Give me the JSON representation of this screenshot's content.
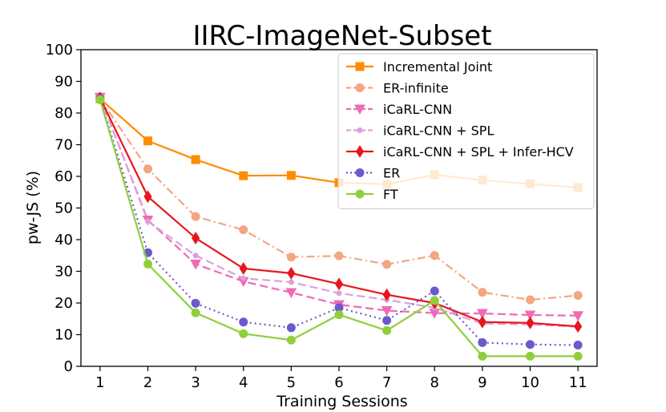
{
  "chart_data": {
    "type": "line",
    "title": "IIRC-ImageNet-Subset",
    "xlabel": "Training Sessions",
    "ylabel": "pw-JS (%)",
    "x": [
      1,
      2,
      3,
      4,
      5,
      6,
      7,
      8,
      9,
      10,
      11
    ],
    "xlim": [
      0.6,
      11.4
    ],
    "ylim": [
      0,
      100
    ],
    "yticks": [
      0,
      10,
      20,
      30,
      40,
      50,
      60,
      70,
      80,
      90,
      100
    ],
    "grid": false,
    "legend_position": "top-right",
    "series": [
      {
        "name": "Incremental Joint",
        "color": "#ff8c00",
        "dash": "solid",
        "marker": "square",
        "values": [
          84.5,
          71.2,
          65.3,
          60.2,
          60.3,
          58.0,
          57.5,
          60.5,
          58.8,
          57.6,
          56.5
        ]
      },
      {
        "name": "ER-infinite",
        "color": "#f4a582",
        "dash": "dashdot",
        "marker": "circle",
        "values": [
          84.6,
          62.3,
          47.3,
          43.1,
          34.5,
          34.9,
          32.2,
          35.0,
          23.4,
          21.0,
          22.4
        ]
      },
      {
        "name": "iCaRL-CNN",
        "color": "#f06ab4",
        "dash": "dashed",
        "marker": "triangle-down",
        "values": [
          85.0,
          46.2,
          32.3,
          26.8,
          23.3,
          19.5,
          17.6,
          16.8,
          16.7,
          16.2,
          16.0
        ]
      },
      {
        "name": "iCaRL-CNN + SPL",
        "color": "#dda0dd",
        "dash": "dashed",
        "marker": "small-dot",
        "values": [
          85.3,
          45.8,
          35.0,
          27.8,
          26.6,
          23.1,
          21.0,
          18.5,
          13.5,
          13.2,
          12.5
        ]
      },
      {
        "name": "iCaRL-CNN + SPL + Infer-HCV",
        "color": "#e8161c",
        "dash": "solid",
        "marker": "diamond",
        "values": [
          84.8,
          53.6,
          40.5,
          30.9,
          29.4,
          26.0,
          22.6,
          20.0,
          14.0,
          13.7,
          12.6
        ]
      },
      {
        "name": "ER",
        "color": "#6a5acd",
        "dash": "dotted",
        "marker": "circle",
        "values": [
          84.5,
          35.9,
          19.9,
          14.0,
          12.2,
          18.5,
          14.5,
          23.8,
          7.5,
          6.9,
          6.7
        ]
      },
      {
        "name": "FT",
        "color": "#8fcf3c",
        "dash": "solid",
        "marker": "circle",
        "values": [
          84.2,
          32.3,
          16.9,
          10.3,
          8.3,
          16.3,
          11.3,
          20.8,
          3.2,
          3.2,
          3.2
        ]
      }
    ]
  }
}
